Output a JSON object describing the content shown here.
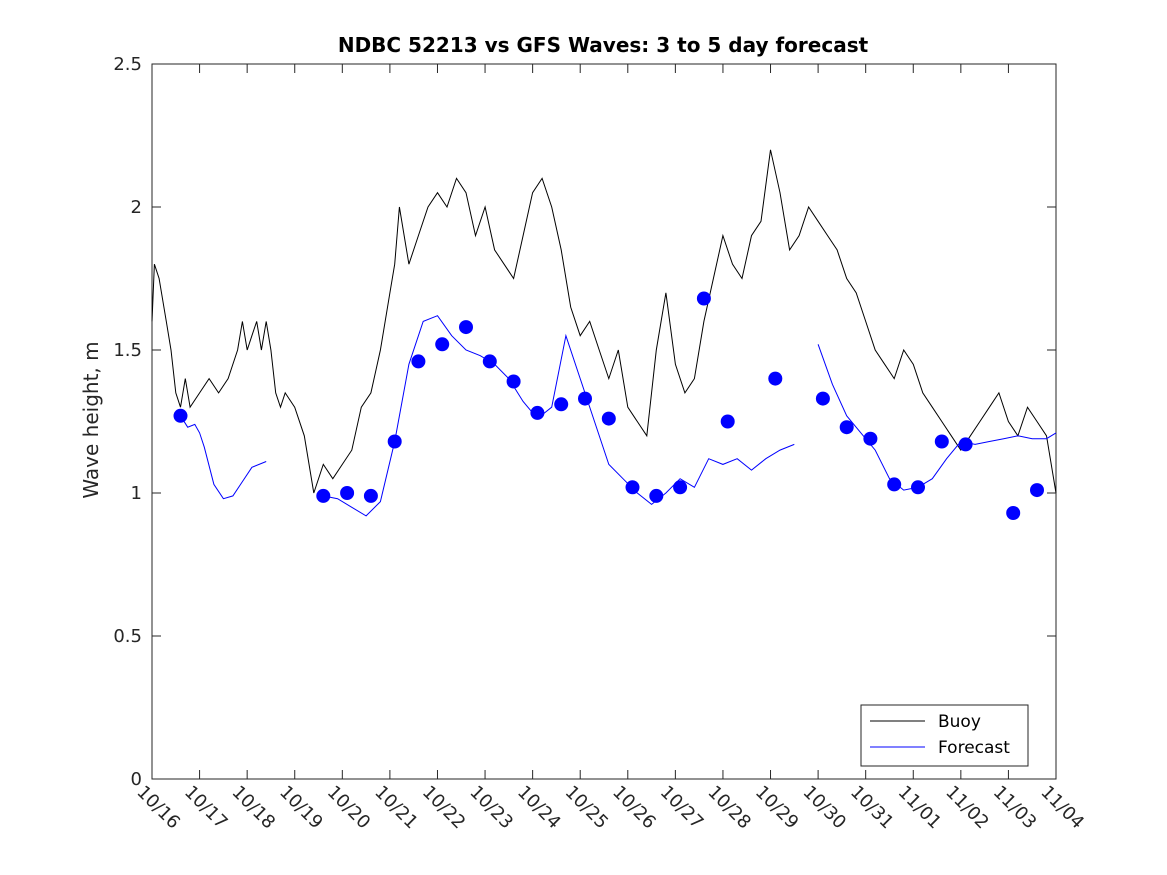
{
  "chart_data": {
    "type": "line",
    "title": "NDBC 52213 vs GFS Waves: 3 to 5 day forecast",
    "xlabel": "",
    "ylabel": "Wave height, m",
    "xlim": [
      0,
      19
    ],
    "ylim": [
      0,
      2.5
    ],
    "x_tick_values": [
      0,
      1,
      2,
      3,
      4,
      5,
      6,
      7,
      8,
      9,
      10,
      11,
      12,
      13,
      14,
      15,
      16,
      17,
      18,
      19
    ],
    "x_tick_labels": [
      "10/16",
      "10/17",
      "10/18",
      "10/19",
      "10/20",
      "10/21",
      "10/22",
      "10/23",
      "10/24",
      "10/25",
      "10/26",
      "10/27",
      "10/28",
      "10/29",
      "10/30",
      "10/31",
      "11/01",
      "11/02",
      "11/03",
      "11/04"
    ],
    "y_tick_values": [
      0,
      0.5,
      1,
      1.5,
      2,
      2.5
    ],
    "y_tick_labels": [
      "0",
      "0.5",
      "1",
      "1.5",
      "2",
      "2.5"
    ],
    "x_units": "days since 10/16 00:00",
    "legend": {
      "position": "bottom-right",
      "entries": [
        "Buoy",
        "Forecast"
      ]
    },
    "colors": {
      "buoy": "#000000",
      "forecast": "#0000ff",
      "axes": "#262626"
    },
    "series": [
      {
        "name": "Buoy",
        "x": [
          0,
          0.05,
          0.15,
          0.3,
          0.4,
          0.5,
          0.6,
          0.7,
          0.8,
          1.0,
          1.2,
          1.4,
          1.6,
          1.8,
          1.9,
          2.0,
          2.1,
          2.2,
          2.3,
          2.4,
          2.5,
          2.6,
          2.7,
          2.8,
          3.0,
          3.2,
          3.4,
          3.6,
          3.8,
          4.0,
          4.2,
          4.4,
          4.6,
          4.8,
          5.0,
          5.1,
          5.2,
          5.4,
          5.6,
          5.8,
          6.0,
          6.2,
          6.4,
          6.6,
          6.8,
          7.0,
          7.2,
          7.4,
          7.6,
          7.8,
          8.0,
          8.2,
          8.4,
          8.6,
          8.8,
          9.0,
          9.2,
          9.4,
          9.6,
          9.8,
          10.0,
          10.2,
          10.4,
          10.6,
          10.8,
          11.0,
          11.2,
          11.4,
          11.6,
          11.8,
          12.0,
          12.2,
          12.4,
          12.6,
          12.8,
          13.0,
          13.2,
          13.4,
          13.6,
          13.8,
          14.0,
          14.2,
          14.4,
          14.6,
          14.8,
          15.0,
          15.2,
          15.4,
          15.6,
          15.8,
          16.0,
          16.2,
          16.4,
          16.6,
          16.8,
          17.0,
          17.2,
          17.4,
          17.6,
          17.8,
          18.0,
          18.2,
          18.4,
          18.6,
          18.8,
          19.0
        ],
        "y": [
          1.6,
          1.8,
          1.75,
          1.6,
          1.5,
          1.35,
          1.3,
          1.4,
          1.3,
          1.35,
          1.4,
          1.35,
          1.4,
          1.5,
          1.6,
          1.5,
          1.55,
          1.6,
          1.5,
          1.6,
          1.5,
          1.35,
          1.3,
          1.35,
          1.3,
          1.2,
          1.0,
          1.1,
          1.05,
          1.1,
          1.15,
          1.3,
          1.35,
          1.5,
          1.7,
          1.8,
          2.0,
          1.8,
          1.9,
          2.0,
          2.05,
          2.0,
          2.1,
          2.05,
          1.9,
          2.0,
          1.85,
          1.8,
          1.75,
          1.9,
          2.05,
          2.1,
          2.0,
          1.85,
          1.65,
          1.55,
          1.6,
          1.5,
          1.4,
          1.5,
          1.3,
          1.25,
          1.2,
          1.5,
          1.7,
          1.45,
          1.35,
          1.4,
          1.6,
          1.75,
          1.9,
          1.8,
          1.75,
          1.9,
          1.95,
          2.2,
          2.05,
          1.85,
          1.9,
          2.0,
          1.95,
          1.9,
          1.85,
          1.75,
          1.7,
          1.6,
          1.5,
          1.45,
          1.4,
          1.5,
          1.45,
          1.35,
          1.3,
          1.25,
          1.2,
          1.15,
          1.2,
          1.25,
          1.3,
          1.35,
          1.25,
          1.2,
          1.3,
          1.25,
          1.2,
          1.0
        ]
      },
      {
        "name": "Forecast",
        "segments": [
          {
            "x": [
              0.6,
              0.75,
              0.9,
              1.0,
              1.1,
              1.3,
              1.5,
              1.7,
              1.9,
              2.1,
              2.4
            ],
            "y": [
              1.27,
              1.23,
              1.24,
              1.21,
              1.16,
              1.03,
              0.98,
              0.99,
              1.04,
              1.09,
              1.11
            ]
          },
          {
            "x": [
              3.6,
              3.9,
              4.2,
              4.5,
              4.8,
              5.1,
              5.4,
              5.7,
              6.0,
              6.3,
              6.6,
              6.9,
              7.2,
              7.5,
              7.8,
              8.1,
              8.4,
              8.7,
              9.0,
              9.3,
              9.6,
              9.9,
              10.2,
              10.5,
              10.8,
              11.1,
              11.4,
              11.7,
              12.0,
              12.3,
              12.6,
              12.9,
              13.2,
              13.5
            ],
            "y": [
              0.99,
              0.98,
              0.95,
              0.92,
              0.97,
              1.18,
              1.45,
              1.6,
              1.62,
              1.55,
              1.5,
              1.48,
              1.45,
              1.4,
              1.32,
              1.26,
              1.3,
              1.55,
              1.4,
              1.25,
              1.1,
              1.05,
              1.0,
              0.96,
              1.0,
              1.05,
              1.02,
              1.12,
              1.1,
              1.12,
              1.08,
              1.12,
              1.15,
              1.17
            ]
          },
          {
            "x": [
              14.0,
              14.3,
              14.6,
              14.9,
              15.2,
              15.5,
              15.8,
              16.1,
              16.4,
              16.7,
              17.0,
              17.3,
              17.6,
              17.9,
              18.2,
              18.5,
              18.8,
              19.0
            ],
            "y": [
              1.52,
              1.38,
              1.27,
              1.21,
              1.15,
              1.05,
              1.01,
              1.02,
              1.05,
              1.12,
              1.18,
              1.17,
              1.18,
              1.19,
              1.2,
              1.19,
              1.19,
              1.21
            ]
          }
        ],
        "markers": {
          "x": [
            0.6,
            3.6,
            4.1,
            4.6,
            5.1,
            5.6,
            6.1,
            6.6,
            7.1,
            7.6,
            8.1,
            8.6,
            9.1,
            9.6,
            10.1,
            10.6,
            11.1,
            11.6,
            12.1,
            13.1,
            14.1,
            14.6,
            15.1,
            15.6,
            16.1,
            16.6,
            17.1,
            18.1,
            18.6
          ],
          "y": [
            1.27,
            0.99,
            1.0,
            0.99,
            1.18,
            1.46,
            1.52,
            1.58,
            1.46,
            1.39,
            1.28,
            1.31,
            1.33,
            1.26,
            1.02,
            0.99,
            1.02,
            1.68,
            1.25,
            1.4,
            1.33,
            1.23,
            1.19,
            1.03,
            1.02,
            1.18,
            1.17,
            0.93,
            1.01
          ]
        }
      }
    ]
  }
}
